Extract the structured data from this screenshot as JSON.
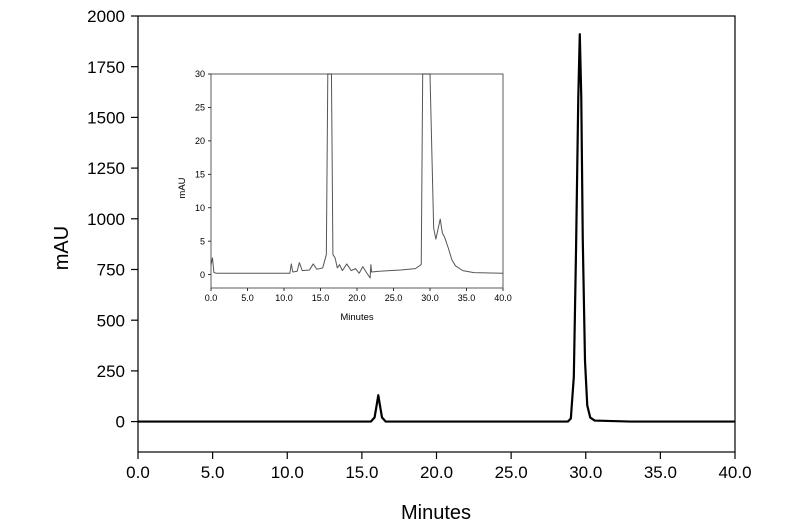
{
  "chart_data": [
    {
      "type": "line",
      "title": "",
      "xlabel": "Minutes",
      "ylabel": "mAU",
      "xlim": [
        0,
        40
      ],
      "ylim": [
        -150,
        2000
      ],
      "x_ticks": [
        "0.0",
        "5.0",
        "10.0",
        "15.0",
        "20.0",
        "25.0",
        "30.0",
        "35.0",
        "40.0"
      ],
      "y_ticks": [
        "0",
        "250",
        "500",
        "750",
        "1000",
        "1250",
        "1500",
        "1750",
        "2000"
      ],
      "grid": false,
      "line_color": "#000000",
      "series": [
        {
          "points": [
            [
              0,
              0
            ],
            [
              15.6,
              0
            ],
            [
              15.85,
              20
            ],
            [
              16.0,
              85
            ],
            [
              16.1,
              130
            ],
            [
              16.2,
              85
            ],
            [
              16.35,
              20
            ],
            [
              16.6,
              0
            ],
            [
              28.8,
              0
            ],
            [
              29.0,
              15
            ],
            [
              29.2,
              220
            ],
            [
              29.35,
              850
            ],
            [
              29.5,
              1600
            ],
            [
              29.6,
              1910
            ],
            [
              29.7,
              1600
            ],
            [
              29.8,
              900
            ],
            [
              29.95,
              300
            ],
            [
              30.1,
              80
            ],
            [
              30.3,
              20
            ],
            [
              30.6,
              5
            ],
            [
              33.0,
              0
            ],
            [
              40.0,
              0
            ]
          ]
        }
      ]
    },
    {
      "type": "line",
      "title": "",
      "xlabel": "Minutes",
      "ylabel": "mAU",
      "xlim": [
        0,
        40
      ],
      "ylim": [
        -2,
        30
      ],
      "x_ticks": [
        "0.0",
        "5.0",
        "10.0",
        "15.0",
        "20.0",
        "25.0",
        "30.0",
        "35.0",
        "40.0"
      ],
      "y_ticks": [
        "0",
        "5",
        "10",
        "15",
        "20",
        "25",
        "30"
      ],
      "grid": false,
      "line_color": "#555555",
      "series": [
        {
          "points": [
            [
              0,
              1.5
            ],
            [
              0.2,
              2.5
            ],
            [
              0.4,
              0.3
            ],
            [
              0.8,
              0.2
            ],
            [
              10.8,
              0.2
            ],
            [
              11.0,
              1.6
            ],
            [
              11.2,
              0.4
            ],
            [
              11.8,
              0.5
            ],
            [
              12.1,
              1.8
            ],
            [
              12.5,
              0.6
            ],
            [
              13.5,
              0.7
            ],
            [
              14.0,
              1.6
            ],
            [
              14.5,
              0.8
            ],
            [
              15.3,
              1.0
            ],
            [
              15.8,
              3.0
            ],
            [
              16.0,
              30
            ],
            [
              16.5,
              30
            ],
            [
              16.7,
              3.0
            ],
            [
              17.0,
              2.5
            ],
            [
              17.3,
              1.0
            ],
            [
              17.6,
              1.5
            ],
            [
              18.0,
              0.6
            ],
            [
              18.6,
              1.6
            ],
            [
              19.2,
              0.6
            ],
            [
              19.8,
              0.9
            ],
            [
              20.3,
              0.2
            ],
            [
              20.8,
              1.2
            ],
            [
              21.3,
              0.3
            ],
            [
              21.8,
              -0.5
            ],
            [
              21.9,
              1.5
            ],
            [
              22.0,
              0.4
            ],
            [
              23.0,
              0.5
            ],
            [
              26.0,
              0.7
            ],
            [
              28.0,
              0.9
            ],
            [
              28.8,
              1.5
            ],
            [
              29.0,
              30
            ],
            [
              30.0,
              30
            ],
            [
              30.5,
              7.0
            ],
            [
              30.8,
              5.3
            ],
            [
              31.1,
              6.8
            ],
            [
              31.4,
              8.3
            ],
            [
              31.7,
              6.2
            ],
            [
              32.0,
              5.6
            ],
            [
              32.5,
              4.0
            ],
            [
              33.0,
              2.2
            ],
            [
              33.5,
              1.3
            ],
            [
              34.5,
              0.6
            ],
            [
              36.0,
              0.3
            ],
            [
              40.0,
              0.2
            ]
          ]
        }
      ]
    }
  ]
}
